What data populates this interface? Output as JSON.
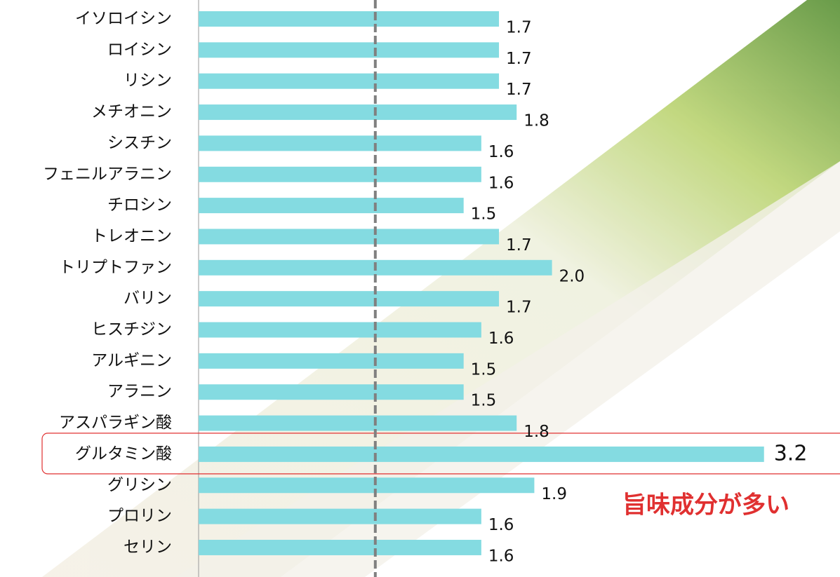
{
  "chart_data": {
    "type": "bar",
    "orientation": "horizontal",
    "categories": [
      "イソロイシン",
      "ロイシン",
      "リシン",
      "メチオニン",
      "シスチン",
      "フェニルアラニン",
      "チロシン",
      "トレオニン",
      "トリプトファン",
      "バリン",
      "ヒスチジン",
      "アルギニン",
      "アラニン",
      "アスパラギン酸",
      "グルタミン酸",
      "グリシン",
      "プロリン",
      "セリン"
    ],
    "values": [
      1.7,
      1.7,
      1.7,
      1.8,
      1.6,
      1.6,
      1.5,
      1.7,
      2.0,
      1.7,
      1.6,
      1.5,
      1.5,
      1.8,
      3.2,
      1.9,
      1.6,
      1.6
    ],
    "value_labels": [
      "1.7",
      "1.7",
      "1.7",
      "1.8",
      "1.6",
      "1.6",
      "1.5",
      "1.7",
      "2.0",
      "1.7",
      "1.6",
      "1.5",
      "1.5",
      "1.8",
      "3.2",
      "1.9",
      "1.6",
      "1.6"
    ],
    "color": "#84dbe1",
    "xlim": [
      0,
      3.63
    ],
    "reference_line": 1,
    "highlight_index": 14,
    "highlight_color": "#e03030",
    "annotation": "旨味成分が多い"
  }
}
